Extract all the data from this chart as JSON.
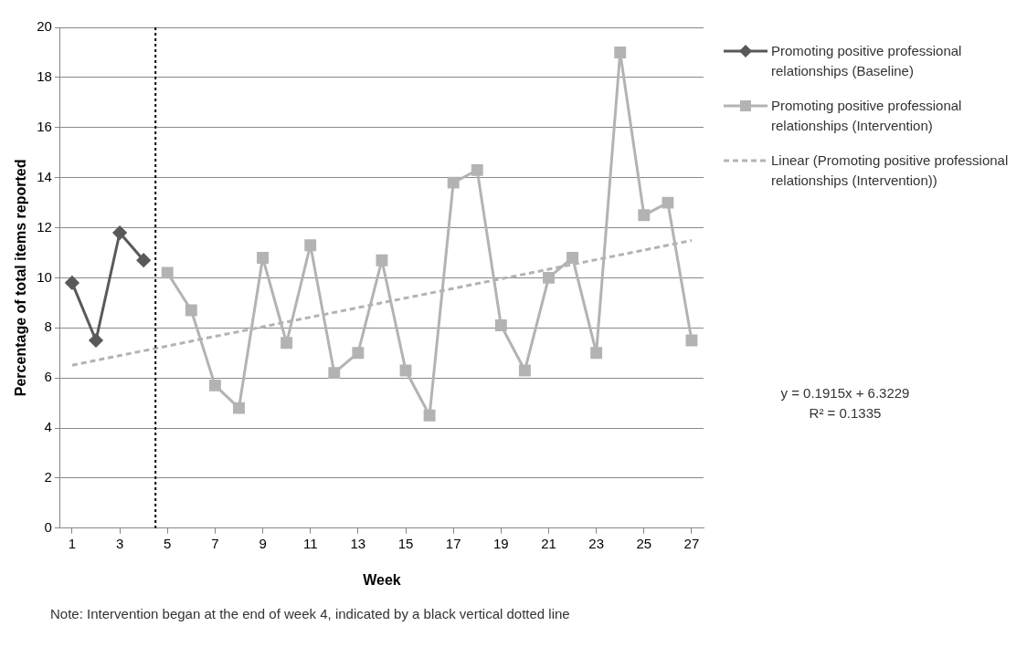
{
  "chart_data": {
    "type": "line",
    "xlabel": "Week",
    "ylabel": "Percentage of total items reported",
    "xlim": [
      0.5,
      27.5
    ],
    "xticks": [
      1,
      3,
      5,
      7,
      9,
      11,
      13,
      15,
      17,
      19,
      21,
      23,
      25,
      27
    ],
    "ylim": [
      0,
      20
    ],
    "yticks": [
      0,
      2,
      4,
      6,
      8,
      10,
      12,
      14,
      16,
      18,
      20
    ],
    "grid": "y",
    "legend": "right",
    "series": [
      {
        "name": "Promoting positive professional relationships (Baseline)",
        "color": "#595959",
        "marker": "diamond",
        "x": [
          1,
          2,
          3,
          4
        ],
        "values": [
          9.8,
          7.5,
          11.8,
          10.7
        ]
      },
      {
        "name": "Promoting positive professional relationships (Intervention)",
        "color": "#b3b3b3",
        "marker": "square",
        "x": [
          5,
          6,
          7,
          8,
          9,
          10,
          11,
          12,
          13,
          14,
          15,
          16,
          17,
          18,
          19,
          20,
          21,
          22,
          23,
          24,
          25,
          26,
          27
        ],
        "values": [
          10.2,
          8.7,
          5.7,
          4.8,
          10.8,
          7.4,
          11.3,
          6.2,
          7.0,
          10.7,
          6.3,
          4.5,
          13.8,
          14.3,
          8.1,
          6.3,
          10.0,
          10.8,
          7.0,
          19.0,
          12.5,
          13.0,
          7.5
        ]
      },
      {
        "name": "Linear (Promoting positive professional relationships (Intervention))",
        "color": "#b3b3b3",
        "marker": "none",
        "line_style": "dashed",
        "x": [
          1,
          27
        ],
        "values": [
          6.51,
          11.49
        ]
      }
    ],
    "ref_lines": [
      {
        "axis": "x",
        "value": 4.5,
        "color": "#000000",
        "line_style": "dotted"
      }
    ],
    "annotations": [
      "y = 0.1915x + 6.3229",
      "R² = 0.1335",
      "Note: Intervention began at the end of week 4, indicated by a black vertical dotted line"
    ]
  }
}
